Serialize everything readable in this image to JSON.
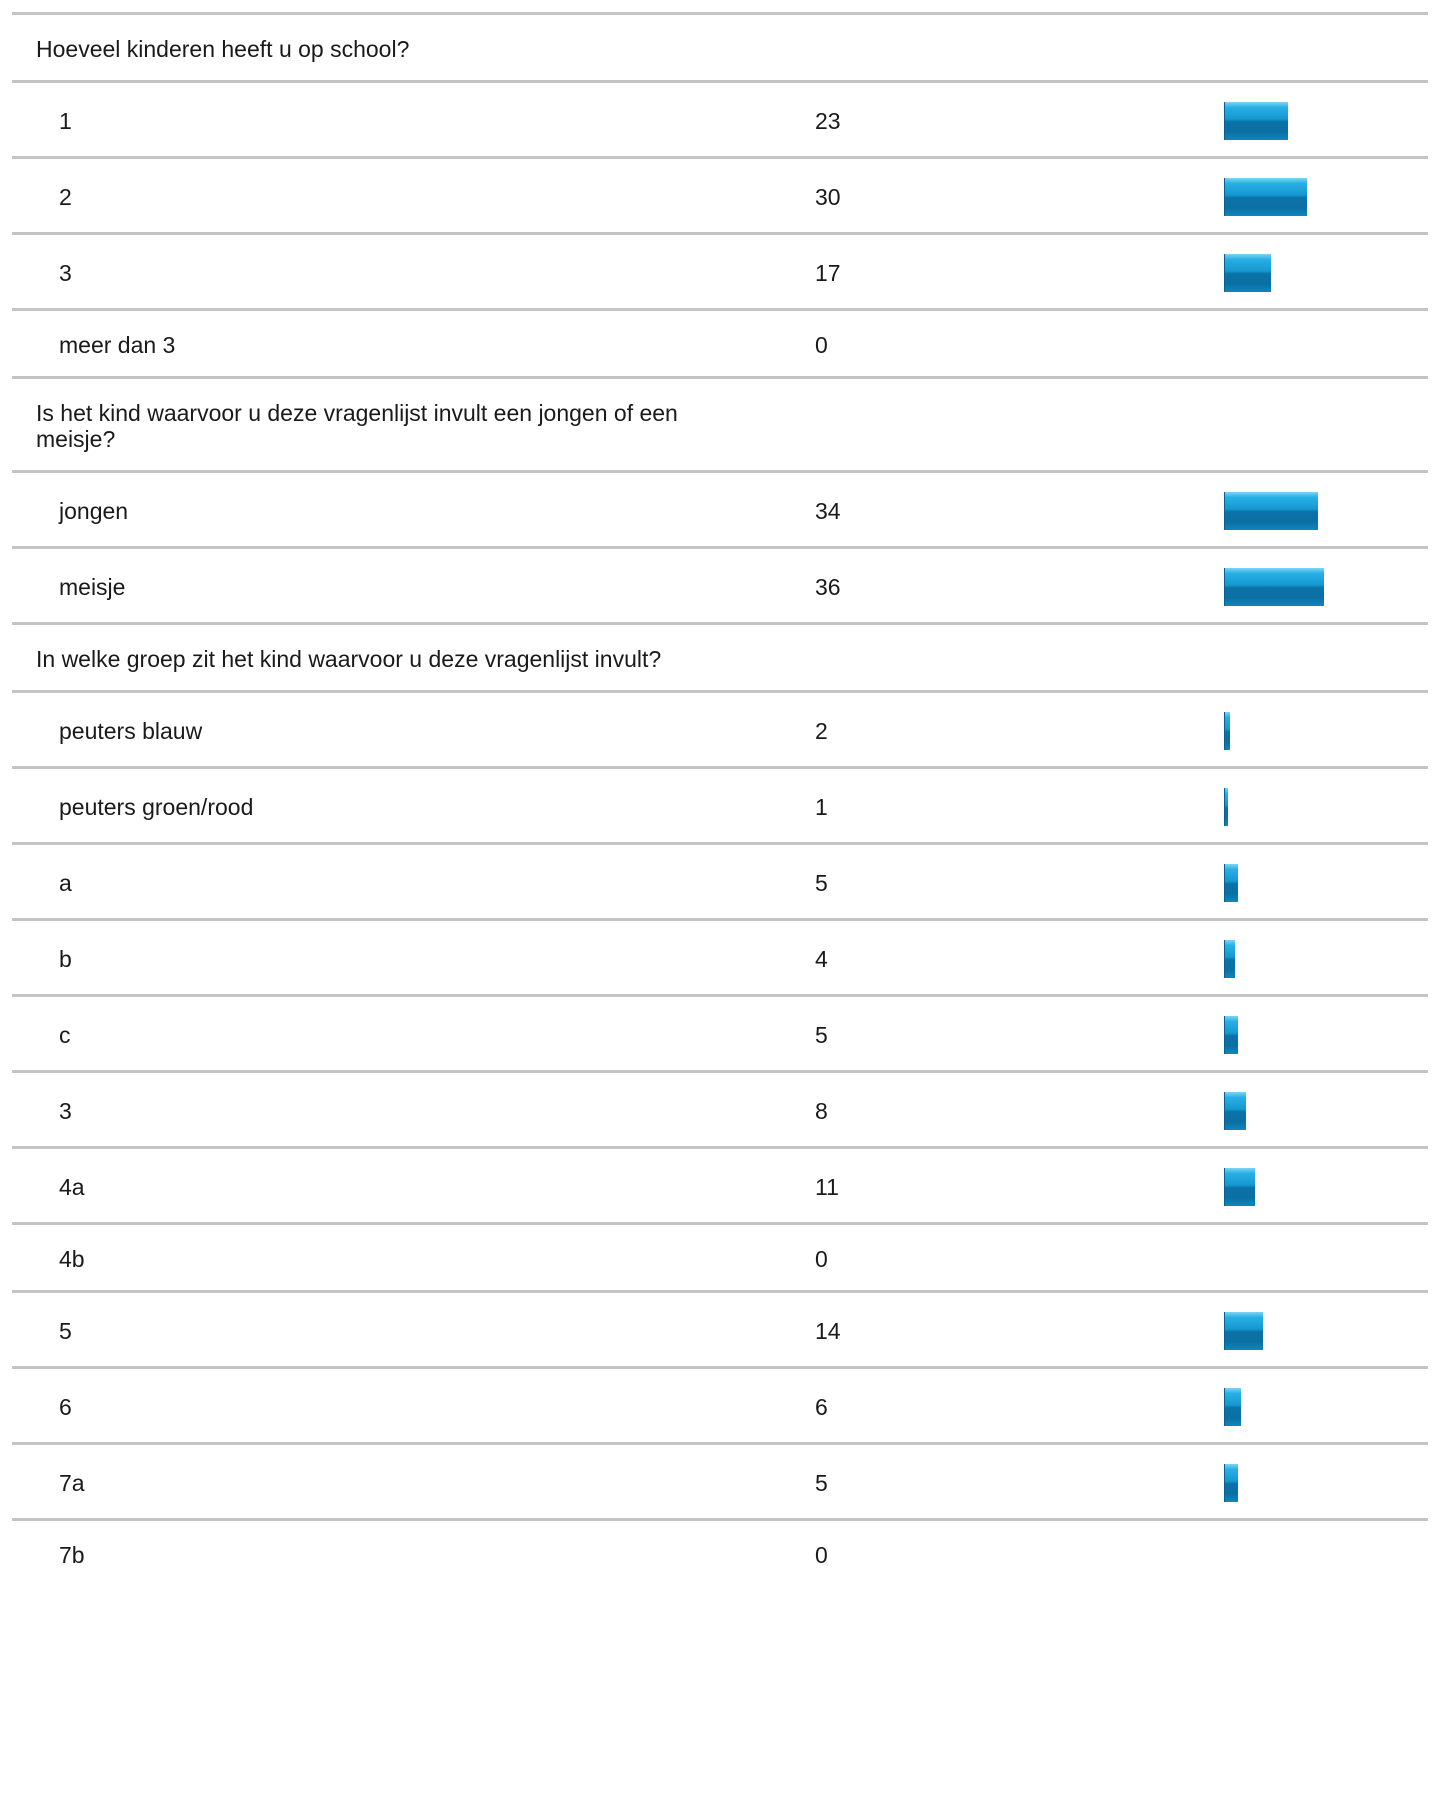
{
  "chart_data": {
    "type": "bar",
    "scale_max": 36,
    "questions": [
      {
        "title": "Hoeveel kinderen heeft u op school?",
        "answers": [
          {
            "label": "1",
            "count": "23",
            "value": 23
          },
          {
            "label": "2",
            "count": "30",
            "value": 30
          },
          {
            "label": "3",
            "count": "17",
            "value": 17
          },
          {
            "label": "meer dan 3",
            "count": "0",
            "value": 0
          }
        ]
      },
      {
        "title": "Is het kind waarvoor u deze vragenlijst invult een jongen of een meisje?",
        "answers": [
          {
            "label": "jongen",
            "count": "34",
            "value": 34
          },
          {
            "label": "meisje",
            "count": "36",
            "value": 36
          }
        ]
      },
      {
        "title": "In welke groep zit het kind waarvoor u deze vragenlijst invult?",
        "answers": [
          {
            "label": "peuters blauw",
            "count": "2",
            "value": 2
          },
          {
            "label": "peuters groen/rood",
            "count": "1",
            "value": 1
          },
          {
            "label": "a",
            "count": "5",
            "value": 5
          },
          {
            "label": "b",
            "count": "4",
            "value": 4
          },
          {
            "label": "c",
            "count": "5",
            "value": 5
          },
          {
            "label": "3",
            "count": "8",
            "value": 8
          },
          {
            "label": "4a",
            "count": "11",
            "value": 11
          },
          {
            "label": "4b",
            "count": "0",
            "value": 0
          },
          {
            "label": "5",
            "count": "14",
            "value": 14
          },
          {
            "label": "6",
            "count": "6",
            "value": 6
          },
          {
            "label": "7a",
            "count": "5",
            "value": 5
          },
          {
            "label": "7b",
            "count": "0",
            "value": 0
          }
        ]
      }
    ]
  },
  "colors": {
    "bar_top": "#28b0e6",
    "bar_bottom": "#0a73a8",
    "divider": "#c4c4c4",
    "text": "#1a1a1a"
  }
}
